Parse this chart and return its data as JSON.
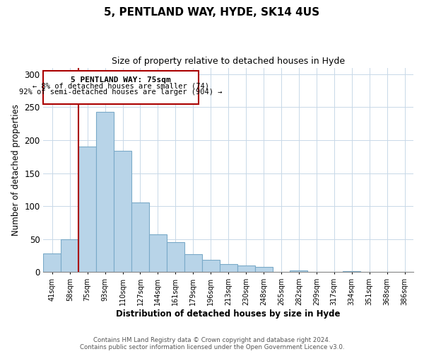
{
  "title_line1": "5, PENTLAND WAY, HYDE, SK14 4US",
  "title_line2": "Size of property relative to detached houses in Hyde",
  "xlabel": "Distribution of detached houses by size in Hyde",
  "ylabel": "Number of detached properties",
  "bar_color": "#b8d4e8",
  "bar_edge_color": "#7aaac8",
  "highlight_line_color": "#aa0000",
  "highlight_box_color": "#aa0000",
  "categories": [
    "41sqm",
    "58sqm",
    "75sqm",
    "93sqm",
    "110sqm",
    "127sqm",
    "144sqm",
    "161sqm",
    "179sqm",
    "196sqm",
    "213sqm",
    "230sqm",
    "248sqm",
    "265sqm",
    "282sqm",
    "299sqm",
    "317sqm",
    "334sqm",
    "351sqm",
    "368sqm",
    "386sqm"
  ],
  "values": [
    28,
    50,
    190,
    243,
    184,
    106,
    57,
    46,
    27,
    19,
    12,
    10,
    8,
    0,
    3,
    0,
    0,
    2,
    0,
    0,
    0
  ],
  "ylim": [
    0,
    310
  ],
  "yticks": [
    0,
    50,
    100,
    150,
    200,
    250,
    300
  ],
  "highlight_bar_idx": 2,
  "annotation_title": "5 PENTLAND WAY: 75sqm",
  "annotation_line1": "← 8% of detached houses are smaller (74)",
  "annotation_line2": "92% of semi-detached houses are larger (904) →",
  "footer_line1": "Contains HM Land Registry data © Crown copyright and database right 2024.",
  "footer_line2": "Contains public sector information licensed under the Open Government Licence v3.0."
}
